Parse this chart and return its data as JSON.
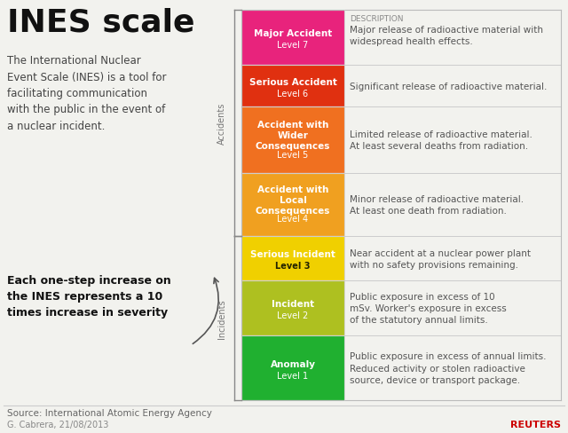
{
  "title": "INES scale",
  "intro_text": "The International Nuclear\nEvent Scale (INES) is a tool for\nfacilitating communication\nwith the public in the event of\na nuclear incident.",
  "bottom_text": "Each one-step increase on\nthe INES represents a 10\ntimes increase in severity",
  "source_text": "Source: International Atomic Energy Agency",
  "credit_text": "G. Cabrera, 21/08/2013",
  "reuters_text": "REUTERS",
  "bg_color": "#f2f2ee",
  "levels": [
    {
      "label": "Major Accident",
      "level": "Level 7",
      "color": "#e8237c",
      "description_header": "DESCRIPTION",
      "description": "Major release of radioactive material with\nwidespread health effects.",
      "category": "Accidents",
      "level_bold": false
    },
    {
      "label": "Serious Accident",
      "level": "Level 6",
      "color": "#e03010",
      "description_header": "",
      "description": "Significant release of radioactive material.",
      "category": "Accidents",
      "level_bold": false
    },
    {
      "label": "Accident with\nWider\nConsequences",
      "level": "Level 5",
      "color": "#f07020",
      "description_header": "",
      "description": "Limited release of radioactive material.\nAt least several deaths from radiation.",
      "category": "Accidents",
      "level_bold": false
    },
    {
      "label": "Accident with\nLocal\nConsequences",
      "level": "Level 4",
      "color": "#f0a020",
      "description_header": "",
      "description": "Minor release of radioactive material.\nAt least one death from radiation.",
      "category": "Accidents",
      "level_bold": false
    },
    {
      "label": "Serious Incident",
      "level": "Level 3",
      "color": "#f0d000",
      "description_header": "",
      "description": "Near accident at a nuclear power plant\nwith no safety provisions remaining.",
      "category": "Incidents",
      "level_bold": true
    },
    {
      "label": "Incident",
      "level": "Level 2",
      "color": "#aec020",
      "description_header": "",
      "description": "Public exposure in excess of 10\nmSv. Worker's exposure in excess\nof the statutory annual limits.",
      "category": "Incidents",
      "level_bold": false
    },
    {
      "label": "Anomaly",
      "level": "Level 1",
      "color": "#20b030",
      "description_header": "",
      "description": "Public exposure in excess of annual limits.\nReduced activity or stolen radioactive\nsource, device or transport package.",
      "category": "Incidents",
      "level_bold": false
    }
  ]
}
